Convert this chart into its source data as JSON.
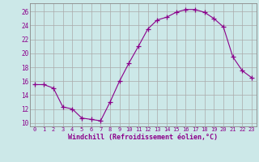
{
  "x": [
    0,
    1,
    2,
    3,
    4,
    5,
    6,
    7,
    8,
    9,
    10,
    11,
    12,
    13,
    14,
    15,
    16,
    17,
    18,
    19,
    20,
    21,
    22,
    23
  ],
  "y": [
    15.5,
    15.5,
    15.0,
    12.3,
    12.0,
    10.7,
    10.5,
    10.3,
    13.0,
    16.0,
    18.6,
    21.0,
    23.5,
    24.8,
    25.2,
    25.9,
    26.3,
    26.3,
    25.9,
    25.0,
    23.8,
    19.5,
    17.5,
    16.5
  ],
  "line_color": "#8B008B",
  "marker": "+",
  "marker_size": 4,
  "bg_color": "#cce8e8",
  "grid_color": "#aaaaaa",
  "xlabel": "Windchill (Refroidissement éolien,°C)",
  "xlabel_color": "#8B008B",
  "tick_color": "#8B008B",
  "ylabel_ticks": [
    10,
    12,
    14,
    16,
    18,
    20,
    22,
    24,
    26
  ],
  "ylim": [
    9.5,
    27.2
  ],
  "xlim": [
    -0.5,
    23.5
  ]
}
